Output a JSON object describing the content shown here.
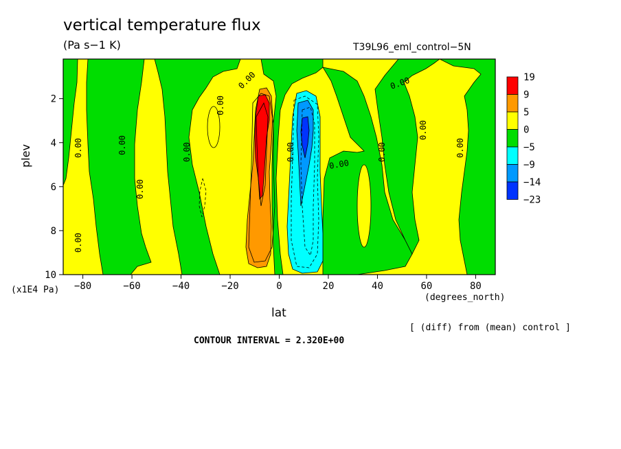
{
  "chart_data": {
    "type": "heatmap",
    "title": "vertical temperature flux",
    "subtitle": "(Pa s−1 K)",
    "run_label": "T39L96_eml_control−5N",
    "xlabel": "lat",
    "x_units": "(degrees_north)",
    "ylabel": "plev",
    "y_units": "(x1E4 Pa)",
    "footnote": "[ (diff) from (mean) control ]",
    "contour_interval_text": "CONTOUR INTERVAL = 2.320E+00",
    "contour_interval": 2.32,
    "xlim": [
      -88,
      88
    ],
    "ylim": [
      10,
      0.2
    ],
    "y_scale": "linear, inverted",
    "x_ticks": [
      "−80",
      "−60",
      "−40",
      "−20",
      "0",
      "20",
      "40",
      "60",
      "80"
    ],
    "x_tick_values": [
      -80,
      -60,
      -40,
      -20,
      0,
      20,
      40,
      60,
      80
    ],
    "y_ticks": [
      "2",
      "4",
      "6",
      "8",
      "10"
    ],
    "y_tick_values": [
      2,
      4,
      6,
      8,
      10
    ],
    "colorbar": {
      "levels": [
        "19",
        "9",
        "5",
        "0",
        "−5",
        "−9",
        "−14",
        "−23"
      ],
      "colors": [
        "#ff0000",
        "#ff9900",
        "#ffff00",
        "#00dd00",
        "#00ffff",
        "#0099ff",
        "#0033ff"
      ]
    },
    "contour_labels": [
      "0.00",
      "0.00",
      "0.00",
      "0.00",
      "0.00",
      "0.00",
      "0.00",
      "0.00",
      "0.00",
      "0.00",
      "0.00",
      "0.00",
      "0.00"
    ],
    "features": [
      {
        "kind": "positive max",
        "lat": -8,
        "plev_range": [
          2,
          9.5
        ],
        "peak_band": "9 to 19",
        "color": "#ff0000"
      },
      {
        "kind": "negative min",
        "lat": 10,
        "plev_range": [
          2,
          9.7
        ],
        "peak_band": "−23 to −14",
        "color": "#0033ff"
      }
    ]
  }
}
